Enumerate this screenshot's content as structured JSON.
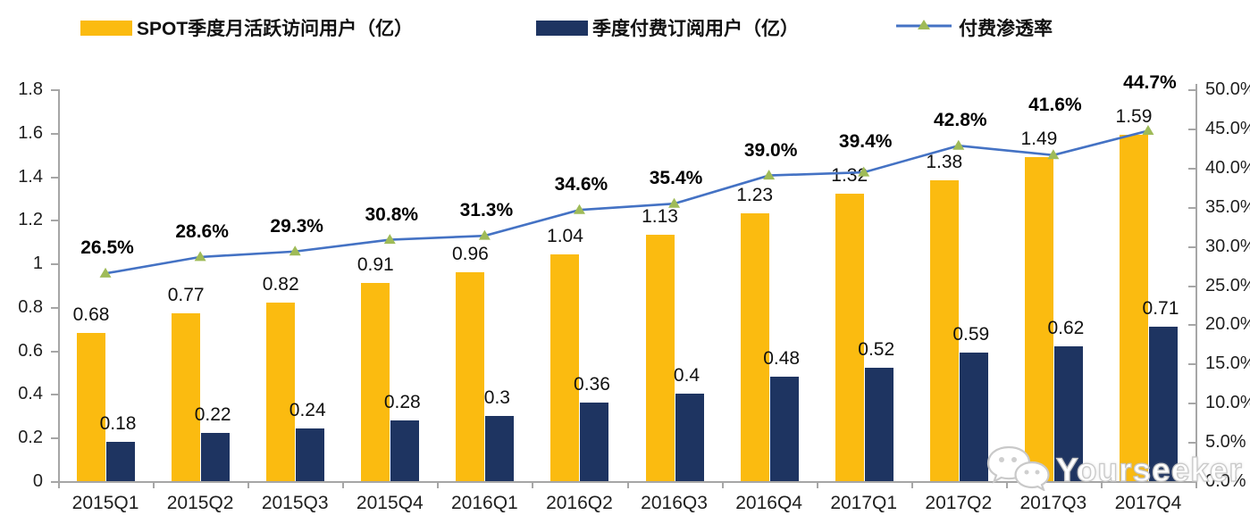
{
  "chart_data": {
    "type": "bar",
    "subtype": "grouped-bars-with-line-combo",
    "title": "",
    "categories": [
      "2015Q1",
      "2015Q2",
      "2015Q3",
      "2015Q4",
      "2016Q1",
      "2016Q2",
      "2016Q3",
      "2016Q4",
      "2017Q1",
      "2017Q2",
      "2017Q3",
      "2017Q4"
    ],
    "series": [
      {
        "name": "SPOT季度月活跃访问用户（亿）",
        "type": "bar",
        "axis": "left",
        "color": "#FBBB10",
        "values": [
          0.68,
          0.77,
          0.82,
          0.91,
          0.96,
          1.04,
          1.13,
          1.23,
          1.32,
          1.38,
          1.49,
          1.59
        ],
        "labels": [
          "0.68",
          "0.77",
          "0.82",
          "0.91",
          "0.96",
          "1.04",
          "1.13",
          "1.23",
          "1.32",
          "1.38",
          "1.49",
          "1.59"
        ]
      },
      {
        "name": "季度付费订阅用户（亿）",
        "type": "bar",
        "axis": "left",
        "color": "#1E3461",
        "values": [
          0.18,
          0.22,
          0.24,
          0.28,
          0.3,
          0.36,
          0.4,
          0.48,
          0.52,
          0.59,
          0.62,
          0.71
        ],
        "labels": [
          "0.18",
          "0.22",
          "0.24",
          "0.28",
          "0.3",
          "0.36",
          "0.4",
          "0.48",
          "0.52",
          "0.59",
          "0.62",
          "0.71"
        ]
      },
      {
        "name": "付费渗透率",
        "type": "line",
        "axis": "right",
        "color": "#4472C4",
        "marker": "triangle",
        "marker_color": "#9FBB58",
        "values": [
          26.5,
          28.6,
          29.3,
          30.8,
          31.3,
          34.6,
          35.4,
          39.0,
          39.4,
          42.8,
          41.6,
          44.7
        ],
        "labels": [
          "26.5%",
          "28.6%",
          "29.3%",
          "30.8%",
          "31.3%",
          "34.6%",
          "35.4%",
          "39.0%",
          "39.4%",
          "42.8%",
          "41.6%",
          "44.7%"
        ]
      }
    ],
    "left_axis": {
      "min": 0,
      "max": 1.8,
      "tick_labels_top_to_bottom": [
        "1.8",
        "1.6",
        "1.4",
        "1.2",
        "1",
        "0.8",
        "0.6",
        "0.4",
        "0.2",
        "0"
      ]
    },
    "right_axis": {
      "min": 0,
      "max": 50,
      "tick_labels_top_to_bottom": [
        "50.0%",
        "45.0%",
        "40.0%",
        "35.0%",
        "30.0%",
        "25.0%",
        "20.0%",
        "15.0%",
        "10.0%",
        "5.0%",
        "0.0%"
      ]
    },
    "grid": false,
    "legend_position": "top"
  },
  "watermark": {
    "text": "Yourseeker",
    "icon": "wechat-chat-bubbles-icon"
  }
}
